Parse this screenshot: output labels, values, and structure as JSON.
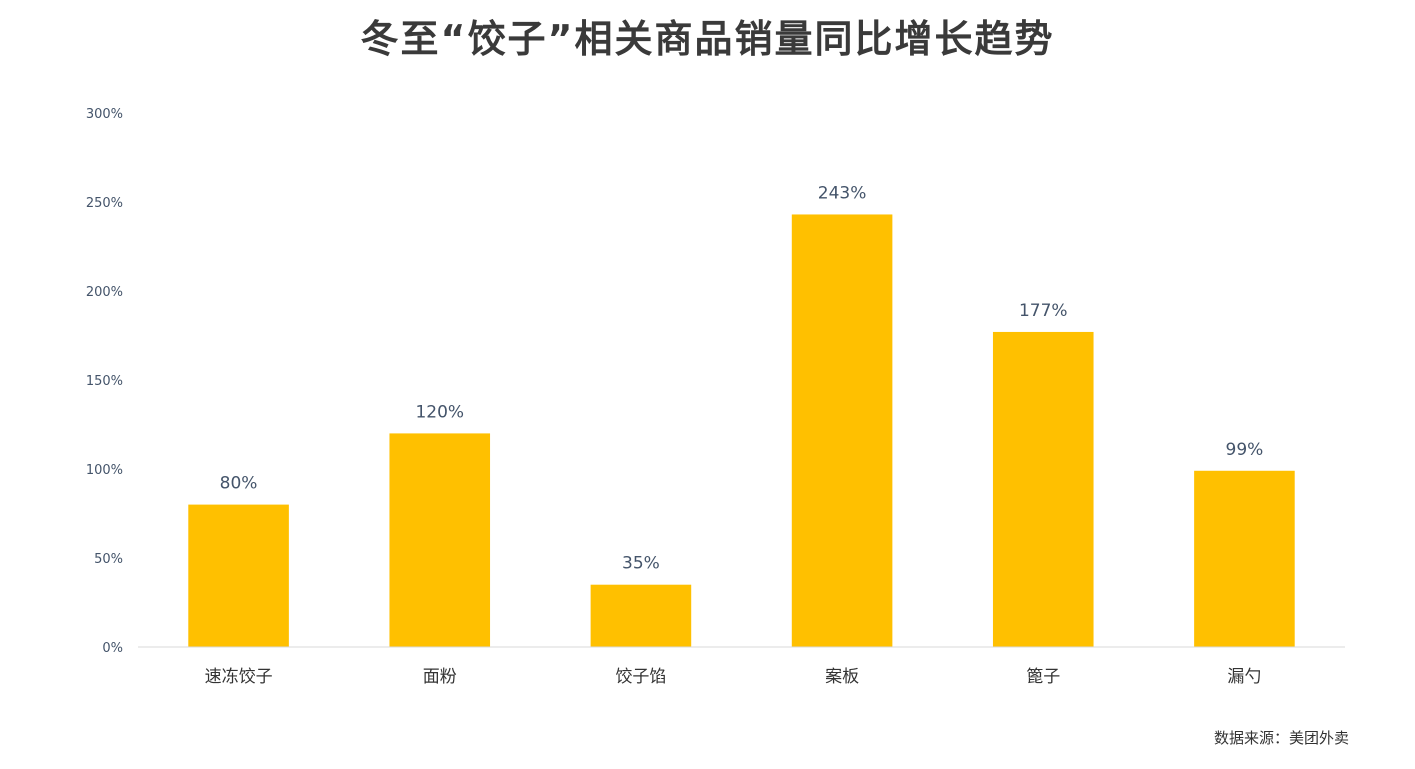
{
  "chart_data": {
    "type": "bar",
    "title": "冬至“饺子”相关商品销量同比增长趋势",
    "categories": [
      "速冻饺子",
      "面粉",
      "饺子馅",
      "案板",
      "篦子",
      "漏勺"
    ],
    "values": [
      80,
      120,
      35,
      243,
      177,
      99
    ],
    "data_labels": [
      "80%",
      "120%",
      "35%",
      "243%",
      "177%",
      "99%"
    ],
    "ylim": [
      0,
      300
    ],
    "yticks": [
      0,
      50,
      100,
      150,
      200,
      250,
      300
    ],
    "ytick_labels": [
      "0%",
      "50%",
      "100%",
      "150%",
      "200%",
      "250%",
      "300%"
    ],
    "xlabel": "",
    "ylabel": "",
    "grid": false,
    "bar_color": "#FFC000"
  },
  "source_text": "数据来源：美团外卖"
}
